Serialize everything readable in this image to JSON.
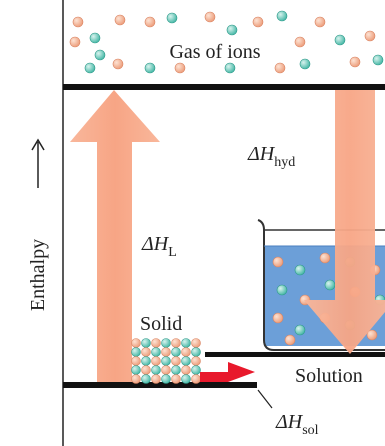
{
  "axis": {
    "label": "Enthalpy"
  },
  "levels": {
    "gas": "Gas of ions",
    "solid": "Solid",
    "solution": "Solution"
  },
  "arrows": {
    "lattice": {
      "symbol": "ΔH",
      "subscript": "L"
    },
    "hydration": {
      "symbol": "ΔH",
      "subscript": "hyd"
    },
    "solution": {
      "symbol": "ΔH",
      "subscript": "sol"
    }
  }
}
